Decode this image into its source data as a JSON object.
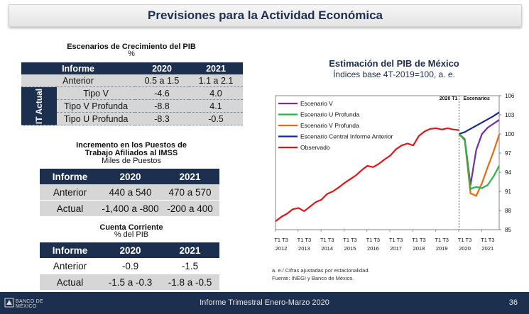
{
  "header": {
    "title": "Previsiones para la Actividad Económica"
  },
  "gdp_table": {
    "title": "Escenarios de Crecimiento del PIB",
    "unit": "%",
    "columns": [
      "Informe",
      "2020",
      "2021"
    ],
    "group_label": "IT Actual",
    "rows": [
      {
        "label": "Anterior",
        "v2020": "0.5 a 1.5",
        "v2021": "1.1 a 2.1"
      },
      {
        "label": "Tipo V",
        "v2020": "-4.6",
        "v2021": "4.0"
      },
      {
        "label": "Tipo V Profunda",
        "v2020": "-8.8",
        "v2021": "4.1"
      },
      {
        "label": "Tipo U Profunda",
        "v2020": "-8.3",
        "v2021": "-0.5"
      }
    ]
  },
  "jobs_table": {
    "title_line1": "Incremento en los Puestos de",
    "title_line2": "Trabajo Afiliados al IMSS",
    "unit": "Miles de Puestos",
    "columns": [
      "Informe",
      "2020",
      "2021"
    ],
    "rows": [
      {
        "label": "Anterior",
        "v2020": "440 a 540",
        "v2021": "470 a 570"
      },
      {
        "label": "Actual",
        "v2020": "-1,400 a -800",
        "v2021": "-200 a 400"
      }
    ]
  },
  "account_table": {
    "title": "Cuenta Corriente",
    "unit": "% del PIB",
    "columns": [
      "Informe",
      "2020",
      "2021"
    ],
    "rows": [
      {
        "label": "Anterior",
        "v2020": "-0.9",
        "v2021": "-1.5"
      },
      {
        "label": "Actual",
        "v2020": "-1.5 a -0.3",
        "v2021": "-1.8 a -0.5"
      }
    ]
  },
  "chart_data": {
    "type": "line",
    "title": "Estimación del PIB de México",
    "subtitle": "Índices base 4T-2019=100, a. e.",
    "ylim": [
      85,
      106
    ],
    "yticks": [
      85,
      88,
      91,
      94,
      97,
      100,
      103,
      106
    ],
    "x_quarter_labels": [
      "T1 T3",
      "T1 T3",
      "T1 T3",
      "T1 T3",
      "T1 T3",
      "T1 T3",
      "T1 T3",
      "T1 T3",
      "T1 T3",
      "T1 T3"
    ],
    "years": [
      "2012",
      "2013",
      "2014",
      "2015",
      "2016",
      "2017",
      "2018",
      "2019",
      "2020",
      "2021"
    ],
    "vline_label": "2020 T1",
    "scenario_label": "Escenarios",
    "legend": [
      "Escenario V",
      "Escenario U Profunda",
      "Escenario V Profunda",
      "Escenario Central Informe Anterior",
      "Observado"
    ],
    "colors": {
      "v": "#7030a0",
      "u": "#2db34a",
      "vp": "#e86a10",
      "central": "#1a2a8c",
      "obs": "#e0161c"
    },
    "series": [
      {
        "name": "Observado",
        "x": [
          0,
          1,
          2,
          3,
          4,
          5,
          6,
          7,
          8,
          9,
          10,
          11,
          12,
          13,
          14,
          15,
          16,
          17,
          18,
          19,
          20,
          21,
          22,
          23,
          24,
          25,
          26,
          27,
          28,
          29,
          30,
          31,
          32
        ],
        "values": [
          86.3,
          87.0,
          87.5,
          88.2,
          88.4,
          87.9,
          88.6,
          89.3,
          89.7,
          90.6,
          91.0,
          91.6,
          92.3,
          92.9,
          93.5,
          94.3,
          95.0,
          94.8,
          95.3,
          96.0,
          96.6,
          97.6,
          98.2,
          98.5,
          98.2,
          99.7,
          100.4,
          100.8,
          100.9,
          100.7,
          100.9,
          100.7,
          100.6
        ]
      },
      {
        "name": "Escenario Central Informe Anterior",
        "x": [
          32,
          33,
          34,
          35,
          36,
          37,
          38,
          39
        ],
        "values": [
          100.0,
          100.3,
          100.8,
          101.3,
          101.8,
          102.3,
          102.8,
          103.4
        ]
      },
      {
        "name": "Escenario V",
        "x": [
          32,
          33,
          34,
          35,
          36,
          37,
          38,
          39
        ],
        "values": [
          100.0,
          99.2,
          92.0,
          97.5,
          100.0,
          101.0,
          101.6,
          102.2
        ]
      },
      {
        "name": "Escenario V Profunda",
        "x": [
          32,
          33,
          34,
          35,
          36,
          37,
          38,
          39
        ],
        "values": [
          100.0,
          99.0,
          90.7,
          90.3,
          92.3,
          94.8,
          97.2,
          99.9
        ]
      },
      {
        "name": "Escenario U Profunda",
        "x": [
          32,
          33,
          34,
          35,
          36,
          37,
          38,
          39
        ],
        "values": [
          100.0,
          99.1,
          91.4,
          91.7,
          91.5,
          92.0,
          93.3,
          95.0
        ]
      }
    ]
  },
  "footnotes": {
    "line1": "a. e./ Cifras ajustadas por estacionalidad.",
    "line2": "Fuente: INEGI y Banco de México."
  },
  "footer": {
    "text": "Informe Trimestral Enero-Marzo 2020",
    "page": "36",
    "logo_text": "BANCO DE MÉXICO"
  }
}
